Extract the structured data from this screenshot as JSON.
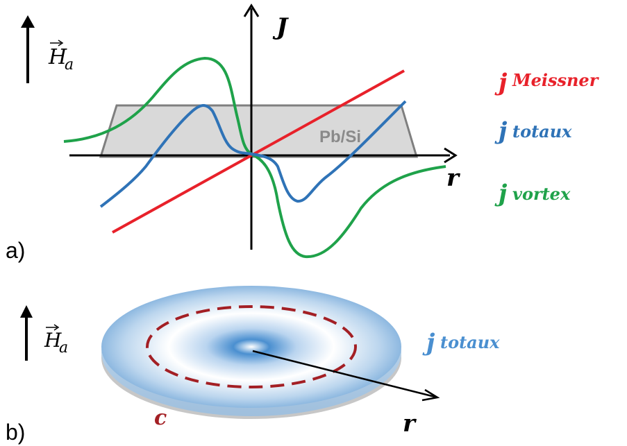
{
  "panel_a": {
    "label": "a)",
    "field_label": "H",
    "field_subscript": "a",
    "axis_y_label": "J",
    "axis_x_label": "r",
    "sample_label": "Pb/Si",
    "legend": [
      {
        "text": "j",
        "sub": "Meissner",
        "color": "#e8212a"
      },
      {
        "text": "j",
        "sub": "totaux",
        "color": "#2f73b7"
      },
      {
        "text": "j",
        "sub": "vortex",
        "color": "#1fa24a"
      }
    ]
  },
  "panel_b": {
    "label": "b)",
    "field_label": "H",
    "field_subscript": "a",
    "current_label_main": "j",
    "current_label_sub": "totaux",
    "contour_label": "c",
    "radius_label": "r"
  },
  "colors": {
    "meissner": "#e8212a",
    "totaux": "#2f73b7",
    "vortex": "#1fa24a",
    "sample_fill": "#d9d9d9",
    "sample_stroke": "#7f7f7f",
    "contour": "#a31f24"
  }
}
